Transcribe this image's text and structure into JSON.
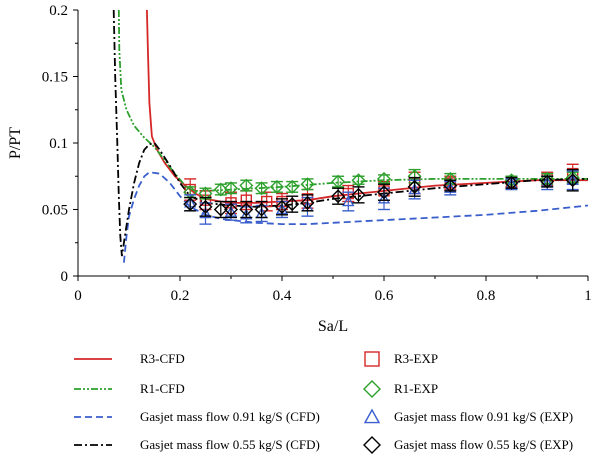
{
  "chart_data": {
    "type": "line",
    "title": "",
    "xlabel": "Sa/L",
    "ylabel": "P/PT",
    "xlim": [
      0,
      1
    ],
    "ylim": [
      0,
      0.2
    ],
    "x_ticks": [
      {
        "value": 0,
        "label": "0"
      },
      {
        "value": 0.2,
        "label": "0.2"
      },
      {
        "value": 0.4,
        "label": "0.4"
      },
      {
        "value": 0.6,
        "label": "0.6"
      },
      {
        "value": 0.8,
        "label": "0.8"
      },
      {
        "value": 1,
        "label": "1"
      }
    ],
    "y_ticks": [
      {
        "value": 0,
        "label": "0"
      },
      {
        "value": 0.05,
        "label": "0.05"
      },
      {
        "value": 0.1,
        "label": "0.1"
      },
      {
        "value": 0.15,
        "label": "0.15"
      },
      {
        "value": 0.2,
        "label": "0.2"
      }
    ],
    "grid": false,
    "legend_position": "bottom",
    "series": [
      {
        "name": "R3-CFD",
        "kind": "line",
        "color": "#d62728",
        "dash": "solid",
        "points": [
          [
            0.135,
            0.2
          ],
          [
            0.137,
            0.17
          ],
          [
            0.14,
            0.13
          ],
          [
            0.145,
            0.105
          ],
          [
            0.155,
            0.095
          ],
          [
            0.17,
            0.085
          ],
          [
            0.19,
            0.075
          ],
          [
            0.21,
            0.068
          ],
          [
            0.23,
            0.062
          ],
          [
            0.25,
            0.058
          ],
          [
            0.28,
            0.056
          ],
          [
            0.3,
            0.055
          ],
          [
            0.35,
            0.055
          ],
          [
            0.4,
            0.056
          ],
          [
            0.45,
            0.057
          ],
          [
            0.5,
            0.06
          ],
          [
            0.6,
            0.064
          ],
          [
            0.7,
            0.068
          ],
          [
            0.8,
            0.07
          ],
          [
            0.9,
            0.072
          ],
          [
            1.0,
            0.072
          ]
        ]
      },
      {
        "name": "R1-CFD",
        "kind": "line",
        "color": "#2ca02c",
        "dash": "dashdotdot",
        "points": [
          [
            0.08,
            0.2
          ],
          [
            0.081,
            0.17
          ],
          [
            0.085,
            0.14
          ],
          [
            0.095,
            0.125
          ],
          [
            0.11,
            0.113
          ],
          [
            0.13,
            0.104
          ],
          [
            0.15,
            0.097
          ],
          [
            0.17,
            0.087
          ],
          [
            0.19,
            0.077
          ],
          [
            0.21,
            0.068
          ],
          [
            0.23,
            0.064
          ],
          [
            0.25,
            0.064
          ],
          [
            0.3,
            0.065
          ],
          [
            0.4,
            0.067
          ],
          [
            0.5,
            0.07
          ],
          [
            0.6,
            0.072
          ],
          [
            0.7,
            0.073
          ],
          [
            0.8,
            0.073
          ],
          [
            0.9,
            0.073
          ],
          [
            1.0,
            0.073
          ]
        ]
      },
      {
        "name": "Gasjet mass flow 0.91 kg/S (CFD)",
        "kind": "line",
        "color": "#3a5fcd",
        "dash": "dashed",
        "points": [
          [
            0.09,
            0.01
          ],
          [
            0.095,
            0.03
          ],
          [
            0.1,
            0.045
          ],
          [
            0.11,
            0.058
          ],
          [
            0.12,
            0.068
          ],
          [
            0.13,
            0.075
          ],
          [
            0.14,
            0.078
          ],
          [
            0.16,
            0.077
          ],
          [
            0.18,
            0.07
          ],
          [
            0.2,
            0.06
          ],
          [
            0.22,
            0.052
          ],
          [
            0.25,
            0.046
          ],
          [
            0.28,
            0.043
          ],
          [
            0.3,
            0.042
          ],
          [
            0.35,
            0.04
          ],
          [
            0.4,
            0.039
          ],
          [
            0.45,
            0.039
          ],
          [
            0.5,
            0.04
          ],
          [
            0.6,
            0.042
          ],
          [
            0.7,
            0.044
          ],
          [
            0.8,
            0.046
          ],
          [
            0.9,
            0.049
          ],
          [
            1.0,
            0.053
          ]
        ]
      },
      {
        "name": "Gasjet mass flow 0.55 kg/S (CFD)",
        "kind": "line",
        "color": "#000000",
        "dash": "dashdot",
        "points": [
          [
            0.07,
            0.2
          ],
          [
            0.073,
            0.15
          ],
          [
            0.077,
            0.1
          ],
          [
            0.08,
            0.06
          ],
          [
            0.083,
            0.03
          ],
          [
            0.086,
            0.015
          ],
          [
            0.09,
            0.025
          ],
          [
            0.1,
            0.05
          ],
          [
            0.11,
            0.07
          ],
          [
            0.12,
            0.085
          ],
          [
            0.13,
            0.095
          ],
          [
            0.14,
            0.099
          ],
          [
            0.15,
            0.1
          ],
          [
            0.16,
            0.095
          ],
          [
            0.18,
            0.083
          ],
          [
            0.2,
            0.07
          ],
          [
            0.22,
            0.06
          ],
          [
            0.25,
            0.055
          ],
          [
            0.3,
            0.053
          ],
          [
            0.35,
            0.052
          ],
          [
            0.4,
            0.053
          ],
          [
            0.45,
            0.055
          ],
          [
            0.5,
            0.058
          ],
          [
            0.6,
            0.062
          ],
          [
            0.7,
            0.066
          ],
          [
            0.8,
            0.069
          ],
          [
            0.9,
            0.072
          ],
          [
            1.0,
            0.073
          ]
        ]
      },
      {
        "name": "R3-EXP",
        "kind": "marker",
        "marker": "square",
        "color": "#d62728",
        "points": [
          [
            0.22,
            0.065,
            0.008
          ],
          [
            0.25,
            0.057,
            0.007
          ],
          [
            0.3,
            0.055,
            0.008
          ],
          [
            0.33,
            0.057,
            0.007
          ],
          [
            0.37,
            0.056,
            0.007
          ],
          [
            0.4,
            0.056,
            0.006
          ],
          [
            0.45,
            0.058,
            0.007
          ],
          [
            0.53,
            0.062,
            0.006
          ],
          [
            0.6,
            0.064,
            0.007
          ],
          [
            0.66,
            0.07,
            0.008
          ],
          [
            0.73,
            0.07,
            0.005
          ],
          [
            0.85,
            0.071,
            0.004
          ],
          [
            0.92,
            0.073,
            0.005
          ],
          [
            0.97,
            0.077,
            0.007
          ]
        ]
      },
      {
        "name": "R1-EXP",
        "kind": "marker",
        "marker": "diamond",
        "color": "#2ca02c",
        "points": [
          [
            0.22,
            0.063,
            0.004
          ],
          [
            0.25,
            0.062,
            0.004
          ],
          [
            0.28,
            0.065,
            0.004
          ],
          [
            0.3,
            0.066,
            0.004
          ],
          [
            0.33,
            0.068,
            0.004
          ],
          [
            0.36,
            0.066,
            0.004
          ],
          [
            0.39,
            0.067,
            0.004
          ],
          [
            0.42,
            0.067,
            0.004
          ],
          [
            0.45,
            0.069,
            0.004
          ],
          [
            0.51,
            0.071,
            0.004
          ],
          [
            0.55,
            0.072,
            0.003
          ],
          [
            0.6,
            0.073,
            0.003
          ],
          [
            0.66,
            0.075,
            0.005
          ],
          [
            0.73,
            0.073,
            0.004
          ],
          [
            0.85,
            0.072,
            0.003
          ],
          [
            0.92,
            0.073,
            0.004
          ],
          [
            0.97,
            0.074,
            0.004
          ]
        ]
      },
      {
        "name": "Gasjet mass flow 0.91 kg/S (EXP)",
        "kind": "marker",
        "marker": "triangle",
        "color": "#3a5fcd",
        "points": [
          [
            0.22,
            0.055,
            0.006
          ],
          [
            0.25,
            0.047,
            0.008
          ],
          [
            0.3,
            0.048,
            0.006
          ],
          [
            0.33,
            0.046,
            0.006
          ],
          [
            0.36,
            0.047,
            0.006
          ],
          [
            0.4,
            0.05,
            0.006
          ],
          [
            0.45,
            0.052,
            0.007
          ],
          [
            0.53,
            0.056,
            0.007
          ],
          [
            0.6,
            0.058,
            0.008
          ],
          [
            0.66,
            0.065,
            0.007
          ],
          [
            0.73,
            0.066,
            0.005
          ],
          [
            0.85,
            0.069,
            0.004
          ],
          [
            0.92,
            0.07,
            0.005
          ],
          [
            0.97,
            0.072,
            0.007
          ]
        ]
      },
      {
        "name": "Gasjet mass flow 0.55 kg/S (EXP)",
        "kind": "marker",
        "marker": "diamond",
        "color": "#000000",
        "points": [
          [
            0.22,
            0.054,
            0.005
          ],
          [
            0.25,
            0.052,
            0.007
          ],
          [
            0.28,
            0.05,
            0.006
          ],
          [
            0.3,
            0.05,
            0.006
          ],
          [
            0.33,
            0.05,
            0.006
          ],
          [
            0.36,
            0.05,
            0.006
          ],
          [
            0.4,
            0.052,
            0.006
          ],
          [
            0.42,
            0.054,
            0.006
          ],
          [
            0.45,
            0.055,
            0.006
          ],
          [
            0.51,
            0.06,
            0.006
          ],
          [
            0.55,
            0.061,
            0.006
          ],
          [
            0.6,
            0.063,
            0.006
          ],
          [
            0.66,
            0.067,
            0.007
          ],
          [
            0.73,
            0.068,
            0.004
          ],
          [
            0.85,
            0.07,
            0.004
          ],
          [
            0.92,
            0.071,
            0.004
          ],
          [
            0.97,
            0.072,
            0.008
          ]
        ]
      }
    ]
  }
}
